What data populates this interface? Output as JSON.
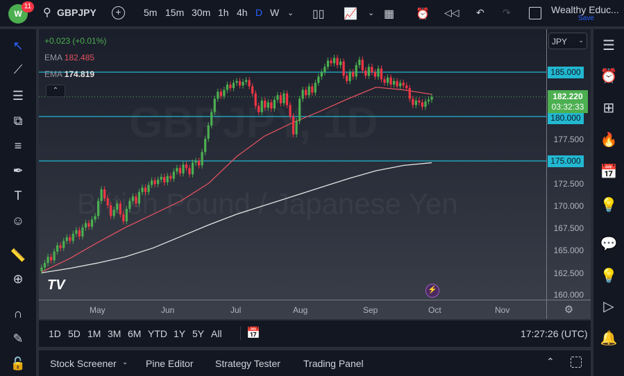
{
  "topbar": {
    "notifications": "11",
    "symbol": "GBPJPY",
    "intervals": [
      "5m",
      "15m",
      "30m",
      "1h",
      "4h",
      "D",
      "W"
    ],
    "active_interval": "D",
    "layout_name": "Wealthy Educ...",
    "save_label": "Save"
  },
  "legend": {
    "change": "+0.023 (+0.01%)",
    "ema1_label": "EMA",
    "ema1_value": "182.485",
    "ema2_label": "EMA",
    "ema2_value": "174.819"
  },
  "watermark": {
    "symbol": "GBPJPY, 1D",
    "description": "British Pound / Japanese Yen"
  },
  "currency": "JPY",
  "colors": {
    "up": "#4caf50",
    "down": "#f23645",
    "ema_fast": "#e0525f",
    "ema_slow": "#e6e6e6",
    "hline": "#22b8d1",
    "accent": "#2962ff"
  },
  "last_price": {
    "value": "182.220",
    "countdown": "03:32:33"
  },
  "horizontal_lines": [
    {
      "price": 185,
      "label": "185.000"
    },
    {
      "price": 180,
      "label": "180.000"
    },
    {
      "price": 175,
      "label": "175.000"
    }
  ],
  "price_ticks": [
    "177.500",
    "172.500",
    "170.000",
    "167.500",
    "165.000",
    "162.500",
    "160.000"
  ],
  "time_ticks": [
    "May",
    "Jun",
    "Jul",
    "Aug",
    "Sep",
    "Oct",
    "Nov"
  ],
  "range_buttons": [
    "1D",
    "5D",
    "1M",
    "3M",
    "6M",
    "YTD",
    "1Y",
    "5Y",
    "All"
  ],
  "clock": "17:27:26 (UTC)",
  "bottom_tabs": [
    "Stock Screener",
    "Pine Editor",
    "Strategy Tester",
    "Trading Panel"
  ],
  "chart_data": {
    "type": "candlestick",
    "symbol": "GBPJPY",
    "ylim": [
      160,
      188
    ],
    "closes": [
      163.0,
      163.5,
      164.2,
      163.8,
      164.8,
      165.5,
      165.2,
      166.0,
      166.4,
      166.0,
      166.8,
      167.2,
      166.5,
      167.5,
      168.0,
      167.6,
      168.4,
      168.8,
      170.5,
      171.8,
      170.8,
      170.0,
      168.8,
      169.5,
      170.2,
      169.0,
      168.2,
      169.6,
      170.5,
      171.0,
      170.2,
      171.5,
      172.0,
      171.5,
      172.3,
      172.8,
      172.4,
      172.9,
      173.2,
      172.6,
      173.3,
      173.0,
      173.8,
      174.2,
      173.6,
      174.6,
      174.2,
      173.5,
      174.8,
      175.0,
      174.5,
      176.0,
      177.5,
      179.0,
      180.5,
      182.0,
      182.8,
      182.3,
      183.0,
      183.6,
      183.2,
      183.8,
      184.0,
      183.5,
      183.9,
      184.1,
      183.4,
      182.6,
      181.2,
      180.5,
      181.8,
      181.0,
      181.6,
      180.9,
      181.9,
      182.4,
      181.5,
      182.6,
      181.3,
      180.0,
      178.0,
      179.5,
      182.0,
      183.0,
      182.4,
      183.4,
      182.7,
      183.8,
      184.5,
      185.0,
      185.6,
      186.3,
      186.0,
      186.6,
      185.8,
      186.2,
      184.6,
      184.0,
      185.0,
      184.5,
      185.8,
      186.4,
      185.2,
      184.6,
      185.6,
      185.0,
      184.5,
      185.4,
      184.2,
      183.8,
      184.4,
      183.6,
      184.0,
      183.4,
      183.8,
      183.5,
      183.2,
      182.0,
      181.3,
      181.8,
      181.6,
      181.1,
      181.7,
      181.9,
      182.22
    ],
    "ema_fast": [
      162.5,
      164.0,
      165.8,
      167.5,
      169.0,
      170.5,
      172.5,
      175.5,
      177.8,
      179.3,
      180.6,
      182.0,
      183.3,
      183.0,
      182.5
    ],
    "ema_slow": [
      162.4,
      162.9,
      163.5,
      164.2,
      165.2,
      166.5,
      167.8,
      169.0,
      170.0,
      171.0,
      172.0,
      173.0,
      173.9,
      174.5,
      174.8
    ]
  }
}
